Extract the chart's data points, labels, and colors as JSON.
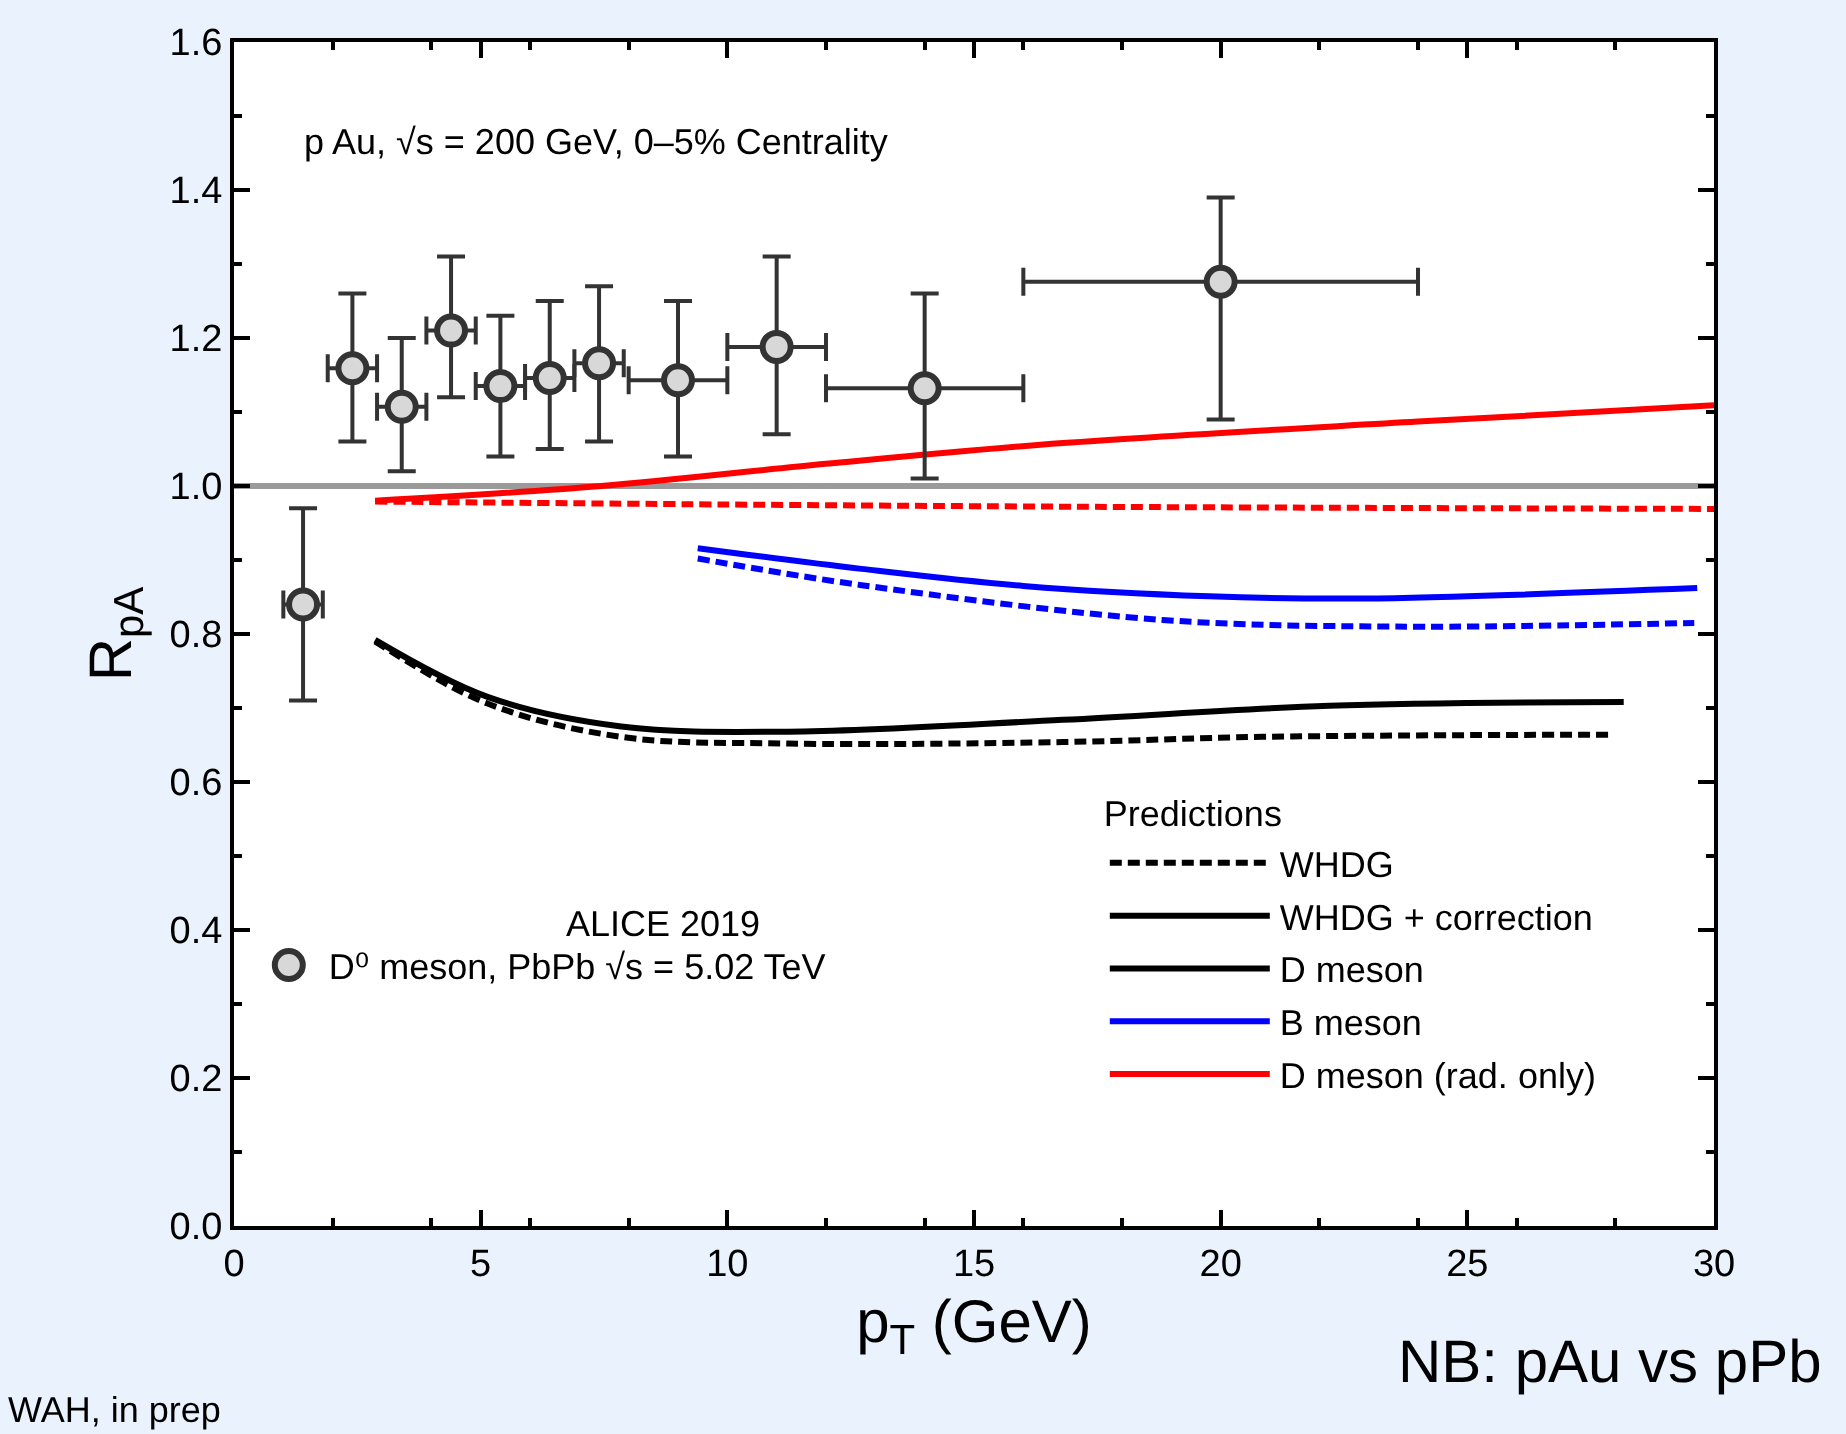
{
  "chart_data": {
    "type": "line",
    "xlabel": "p$_{T}$ (GeV)",
    "ylabel": "R$_{pA}$",
    "legend_title": "Predictions",
    "legend": "bottom right",
    "grid": false,
    "xlim": [
      0,
      30
    ],
    "xticks": [
      0,
      5,
      10,
      15,
      20,
      25,
      30
    ],
    "ylim": [
      0,
      1.6
    ],
    "yticks": [
      {
        "value": 0,
        "label": "0.0"
      },
      {
        "value": 0.2,
        "label": "0.2"
      },
      {
        "value": 0.4,
        "label": "0.4"
      },
      {
        "value": 0.6,
        "label": "0.6"
      },
      {
        "value": 0.8,
        "label": "0.8"
      },
      {
        "value": 1,
        "label": "1.0"
      },
      {
        "value": 1.2,
        "label": "1.2"
      },
      {
        "value": 1.4,
        "label": "1.4"
      },
      {
        "value": 1.6,
        "label": "1.6"
      }
    ],
    "ref_lines": [
      {
        "axis": "y",
        "value": 1,
        "color": "#9a9a9a"
      }
    ],
    "annotations": [
      "p Au, √s = 200 GeV, 0–5% Centrality",
      "ALICE 2019",
      "NB: pAu vs pPb",
      "WAH, in prep"
    ],
    "series": [
      {
        "name": "WHDG",
        "color": "#000000",
        "line_style": "dashed"
      },
      {
        "name": "WHDG + correction",
        "color": "#000000",
        "line_style": "solid"
      },
      {
        "name": "D meson",
        "color": "#000000",
        "line_style": "solid",
        "x": [
          2.86,
          5.14,
          7.85,
          11.23,
          16.8,
          22.2,
          28.17
        ],
        "values": [
          0.792,
          0.715,
          0.675,
          0.668,
          0.684,
          0.703,
          0.708
        ]
      },
      {
        "name": "B meson",
        "color": "#0000ff",
        "line_style": "solid",
        "x": [
          9.4,
          12.72,
          16,
          19.77,
          22.9,
          29.66
        ],
        "values": [
          0.916,
          0.888,
          0.865,
          0.851,
          0.848,
          0.862
        ]
      },
      {
        "name": "D meson (rad. only)",
        "color": "#ff0000",
        "line_style": "solid",
        "x": [
          2.86,
          7.44,
          12,
          16.8,
          24,
          30
        ],
        "values": [
          0.98,
          1.0,
          1.03,
          1.058,
          1.087,
          1.109
        ]
      },
      {
        "color": "#000000",
        "line_style": "dashed",
        "x": [
          2.86,
          5.14,
          7.85,
          11.23,
          16.8,
          20.85,
          27.97
        ],
        "values": [
          0.79,
          0.706,
          0.661,
          0.652,
          0.654,
          0.661,
          0.664
        ]
      },
      {
        "color": "#0000ff",
        "line_style": "dashed",
        "x": [
          9.4,
          12.72,
          18.82,
          23.56,
          29.6
        ],
        "values": [
          0.902,
          0.866,
          0.819,
          0.81,
          0.815
        ]
      },
      {
        "color": "#ff0000",
        "line_style": "dashed",
        "x": [
          2.86,
          10,
          17,
          30
        ],
        "values": [
          0.979,
          0.975,
          0.972,
          0.969
        ]
      },
      {
        "type": "scatter",
        "name": "D⁰ meson, PbPb √s = 5.02 TeV",
        "color": "#333333",
        "marker": "circle",
        "x": [
          1.4,
          2.4,
          3.4,
          4.4,
          5.4,
          6.4,
          7.4,
          9,
          11,
          14,
          20
        ],
        "values": [
          0.84,
          1.159,
          1.107,
          1.21,
          1.135,
          1.146,
          1.166,
          1.143,
          1.188,
          1.132,
          1.276
        ],
        "errors": [
          [
            0.71,
            0.97
          ],
          [
            1.06,
            1.26
          ],
          [
            1.02,
            1.2
          ],
          [
            1.12,
            1.31
          ],
          [
            1.04,
            1.23
          ],
          [
            1.05,
            1.25
          ],
          [
            1.06,
            1.27
          ],
          [
            1.04,
            1.25
          ],
          [
            1.07,
            1.31
          ],
          [
            1.01,
            1.26
          ],
          [
            1.09,
            1.39
          ]
        ],
        "xerrors": [
          0.4,
          0.5,
          0.5,
          0.5,
          0.5,
          0.5,
          0.5,
          1,
          1,
          2,
          4
        ]
      }
    ]
  }
}
